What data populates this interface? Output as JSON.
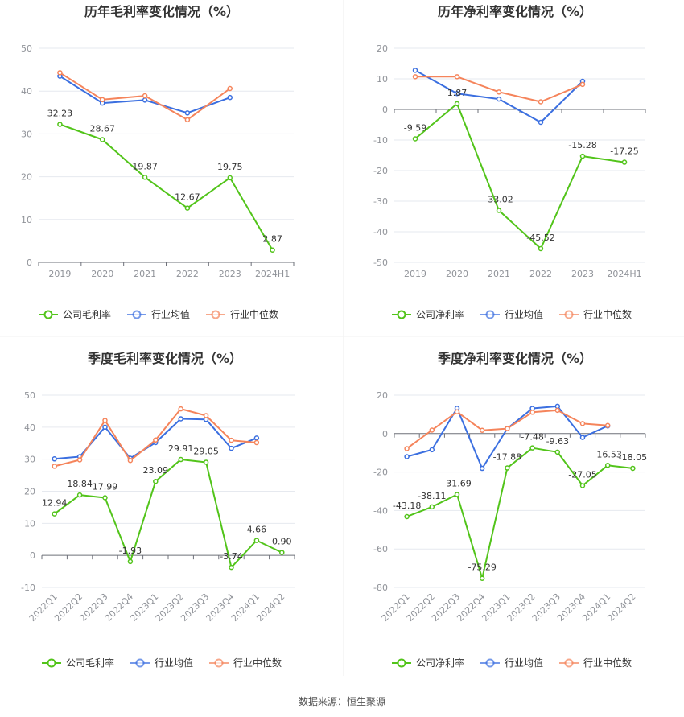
{
  "source_text": "数据来源：恒生聚源",
  "colors": {
    "company": "#52c41a",
    "avg": "#3b6fe0",
    "median": "#f5845b",
    "grid": "#e6e9ef",
    "axis": "#6e7079"
  },
  "chart_data": [
    {
      "type": "line",
      "title": "历年毛利率变化情况（%）",
      "categories": [
        "2019",
        "2020",
        "2021",
        "2022",
        "2023",
        "2024H1"
      ],
      "ylim": [
        0,
        50
      ],
      "yticks": [
        "0",
        "10",
        "20",
        "30",
        "40",
        "50"
      ],
      "grid": true,
      "legend_position": "bottom",
      "series": [
        {
          "name": "公司毛利率",
          "values": [
            32.23,
            28.67,
            19.87,
            12.67,
            19.75,
            2.87
          ],
          "labels": [
            "32.23",
            "28.67",
            "19.87",
            "12.67",
            "19.75",
            "2.87"
          ]
        },
        {
          "name": "行业均值",
          "values": [
            43.5,
            37.2,
            37.9,
            34.9,
            38.5,
            null
          ]
        },
        {
          "name": "行业中位数",
          "values": [
            44.3,
            38.0,
            38.9,
            33.3,
            40.6,
            null
          ]
        }
      ]
    },
    {
      "type": "line",
      "title": "历年净利率变化情况（%）",
      "categories": [
        "2019",
        "2020",
        "2021",
        "2022",
        "2023",
        "2024H1"
      ],
      "ylim": [
        -50,
        20
      ],
      "yticks": [
        "-50",
        "-40",
        "-30",
        "-20",
        "-10",
        "0",
        "10",
        "20"
      ],
      "grid": true,
      "legend_position": "bottom",
      "series": [
        {
          "name": "公司净利率",
          "values": [
            -9.59,
            1.87,
            -33.02,
            -45.52,
            -15.28,
            -17.25
          ],
          "labels": [
            "-9.59",
            "1.87",
            "-33.02",
            "-45.52",
            "-15.28",
            "-17.25"
          ]
        },
        {
          "name": "行业均值",
          "values": [
            12.8,
            5.2,
            3.4,
            -4.2,
            9.2,
            null
          ]
        },
        {
          "name": "行业中位数",
          "values": [
            10.7,
            10.7,
            5.7,
            2.5,
            8.2,
            null
          ]
        }
      ]
    },
    {
      "type": "line",
      "title": "季度毛利率变化情况（%）",
      "categories": [
        "2022Q1",
        "2022Q2",
        "2022Q3",
        "2022Q4",
        "2023Q1",
        "2023Q2",
        "2023Q3",
        "2023Q4",
        "2024Q1",
        "2024Q2"
      ],
      "ylim": [
        -10,
        50
      ],
      "yticks": [
        "-10",
        "0",
        "10",
        "20",
        "30",
        "40",
        "50"
      ],
      "grid": true,
      "legend_position": "bottom",
      "series": [
        {
          "name": "公司毛利率",
          "values": [
            12.94,
            18.84,
            17.99,
            -1.93,
            23.09,
            29.91,
            29.05,
            -3.74,
            4.66,
            0.9
          ],
          "labels": [
            "12.94",
            "18.84",
            "17.99",
            "-1.93",
            "23.09",
            "29.91",
            "29.05",
            "-3.74",
            "4.66",
            "0.90"
          ]
        },
        {
          "name": "行业均值",
          "values": [
            30.1,
            30.8,
            40.0,
            30.3,
            35.2,
            42.6,
            42.4,
            33.4,
            36.6,
            null
          ]
        },
        {
          "name": "行业中位数",
          "values": [
            27.8,
            29.8,
            42.1,
            29.6,
            36.0,
            45.7,
            43.6,
            35.9,
            35.2,
            null
          ]
        }
      ]
    },
    {
      "type": "line",
      "title": "季度净利率变化情况（%）",
      "categories": [
        "2022Q1",
        "2022Q2",
        "2022Q3",
        "2022Q4",
        "2023Q1",
        "2023Q2",
        "2023Q3",
        "2023Q4",
        "2024Q1",
        "2024Q2"
      ],
      "ylim": [
        -80,
        20
      ],
      "yticks": [
        "-80",
        "-60",
        "-40",
        "-20",
        "0",
        "20"
      ],
      "grid": true,
      "legend_position": "bottom",
      "series": [
        {
          "name": "公司净利率",
          "values": [
            -43.18,
            -38.11,
            -31.69,
            -75.29,
            -17.88,
            -7.48,
            -9.63,
            -27.05,
            -16.53,
            -18.05
          ],
          "labels": [
            "-43.18",
            "-38.11",
            "-31.69",
            "-75.29",
            "-17.88",
            "-7.48",
            "-9.63",
            "-27.05",
            "-16.53",
            "-18.05"
          ]
        },
        {
          "name": "行业均值",
          "values": [
            -12.0,
            -8.4,
            13.2,
            -18.1,
            2.6,
            13.1,
            14.2,
            -2.0,
            4.0,
            null
          ]
        },
        {
          "name": "行业中位数",
          "values": [
            -7.8,
            1.8,
            11.3,
            1.7,
            2.6,
            11.1,
            12.1,
            5.2,
            4.2,
            null
          ]
        }
      ]
    }
  ]
}
